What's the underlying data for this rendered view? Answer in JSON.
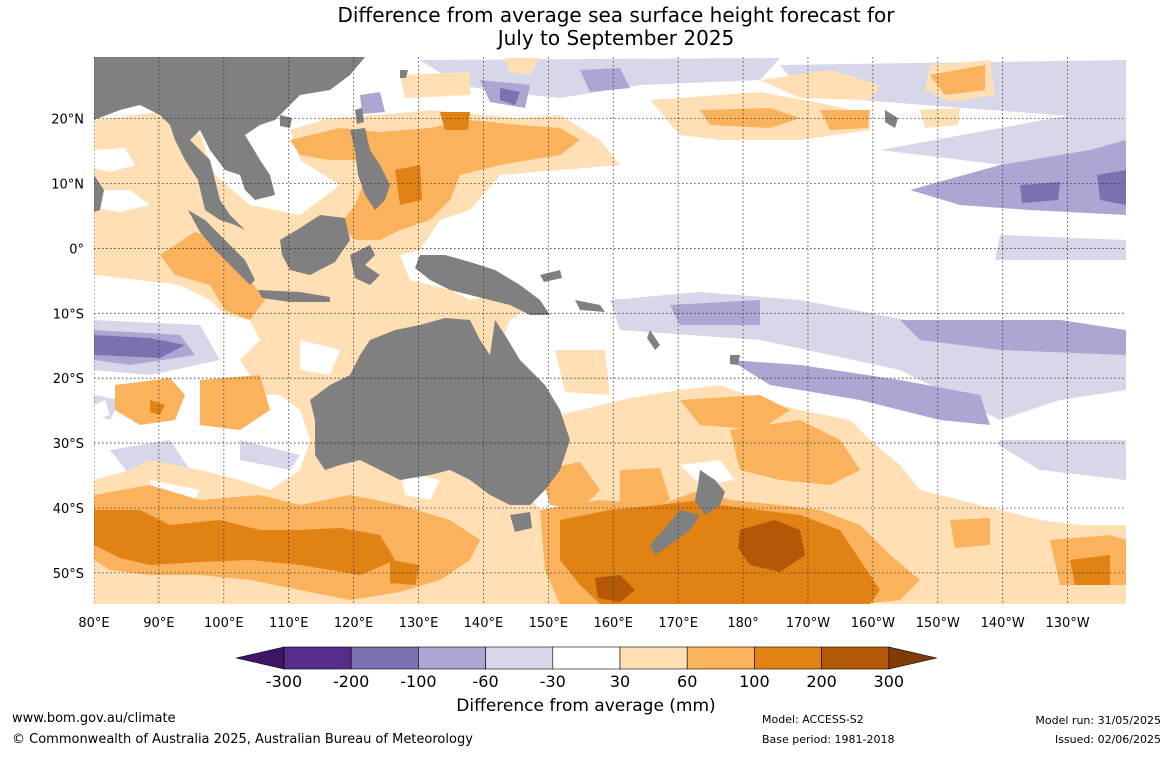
{
  "title_line1": "Difference from average sea surface height forecast for",
  "title_line2": "July to September 2025",
  "lat_labels": [
    {
      "lat": 20,
      "text": "20°N"
    },
    {
      "lat": 10,
      "text": "10°N"
    },
    {
      "lat": 0,
      "text": "0°"
    },
    {
      "lat": -10,
      "text": "10°S"
    },
    {
      "lat": -20,
      "text": "20°S"
    },
    {
      "lat": -30,
      "text": "30°S"
    },
    {
      "lat": -40,
      "text": "40°S"
    },
    {
      "lat": -50,
      "text": "50°S"
    }
  ],
  "lon_labels": [
    {
      "lon": 80,
      "text": "80°E"
    },
    {
      "lon": 90,
      "text": "90°E"
    },
    {
      "lon": 100,
      "text": "100°E"
    },
    {
      "lon": 110,
      "text": "110°E"
    },
    {
      "lon": 120,
      "text": "120°E"
    },
    {
      "lon": 130,
      "text": "130°E"
    },
    {
      "lon": 140,
      "text": "140°E"
    },
    {
      "lon": 150,
      "text": "150°E"
    },
    {
      "lon": 160,
      "text": "160°E"
    },
    {
      "lon": 170,
      "text": "170°E"
    },
    {
      "lon": 180,
      "text": "180°"
    },
    {
      "lon": 190,
      "text": "170°W"
    },
    {
      "lon": 200,
      "text": "160°W"
    },
    {
      "lon": 210,
      "text": "150°W"
    },
    {
      "lon": 220,
      "text": "140°W"
    },
    {
      "lon": 230,
      "text": "130°W"
    }
  ],
  "colorbar": {
    "colors": [
      "#3d1766",
      "#572c8a",
      "#7d70b0",
      "#aba6d2",
      "#d7d7ea",
      "#ffffff",
      "#ffdfb3",
      "#fbb25c",
      "#e08214",
      "#b35806",
      "#7f3b08"
    ],
    "ticks": [
      "-300",
      "-200",
      "-100",
      "-60",
      "-30",
      "30",
      "60",
      "100",
      "200",
      "300"
    ],
    "title": "Difference from average (mm)"
  },
  "land_color": "#808080",
  "footer": {
    "url": "www.bom.gov.au/climate",
    "copyright": "© Commonwealth of Australia 2025, Australian Bureau of Meteorology",
    "model": "Model: ACCESS-S2",
    "base_period": "Base period: 1981-2018",
    "model_run": "Model run: 31/05/2025",
    "issued": "Issued: 02/06/2025"
  }
}
